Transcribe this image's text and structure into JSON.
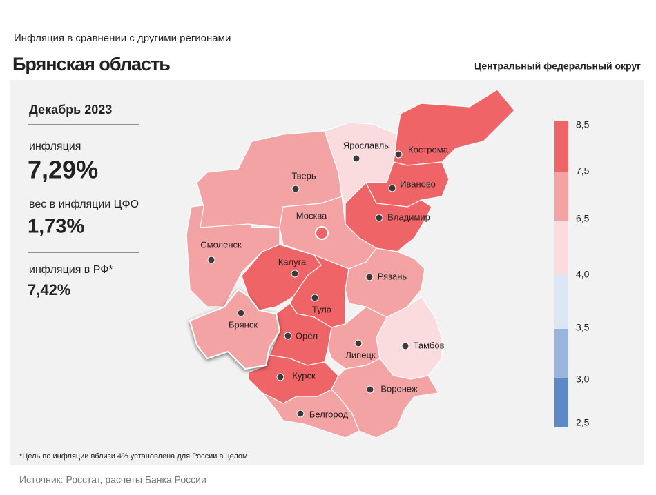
{
  "header": {
    "subtitle": "Инфляция в сравнении с другими регионами",
    "title": "Брянская область",
    "district": "Центральный федеральный округ"
  },
  "panel": {
    "period": "Декабрь 2023",
    "inflation_label": "инфляция",
    "inflation_value": "7,29%",
    "weight_label": "вес в инфляции ЦФО",
    "weight_value": "1,73%",
    "russia_label": "инфляция в РФ*",
    "russia_value": "7,42%"
  },
  "legend": {
    "labels": [
      "8,5",
      "7,5",
      "6,5",
      "4,0",
      "3,5",
      "3,0",
      "2,5"
    ]
  },
  "regions": [
    {
      "name": "Ярославль"
    },
    {
      "name": "Кострома"
    },
    {
      "name": "Иваново"
    },
    {
      "name": "Тверь"
    },
    {
      "name": "Москва"
    },
    {
      "name": "Владимир"
    },
    {
      "name": "Смоленск"
    },
    {
      "name": "Калуга"
    },
    {
      "name": "Тула"
    },
    {
      "name": "Рязань"
    },
    {
      "name": "Брянск"
    },
    {
      "name": "Орёл"
    },
    {
      "name": "Липецк"
    },
    {
      "name": "Тамбов"
    },
    {
      "name": "Курск"
    },
    {
      "name": "Воронеж"
    },
    {
      "name": "Белгород"
    }
  ],
  "footnote": "*Цель по инфляции вблизи 4% установлена для России в целом",
  "source": "Источник: Росстат, расчеты Банка России"
}
